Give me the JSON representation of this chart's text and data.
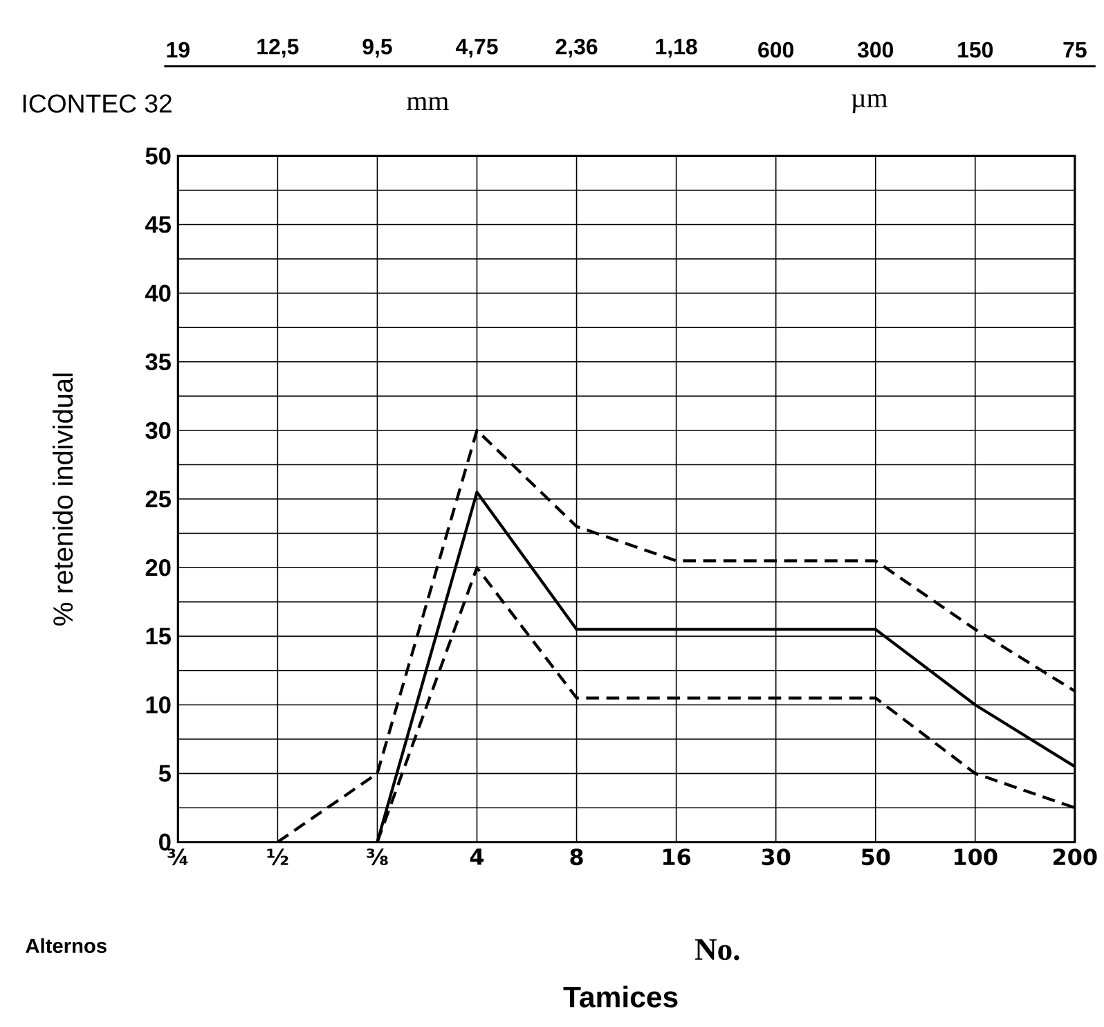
{
  "chart_data": {
    "type": "line",
    "xlabel": "Tamices",
    "ylabel": "% retenido individual",
    "categories": [
      "¾",
      "½",
      "⅜",
      "4",
      "8",
      "16",
      "30",
      "50",
      "100",
      "200"
    ],
    "series": [
      {
        "color": "#000000",
        "line_style": "dashed",
        "values": [
          null,
          0,
          5,
          30,
          23,
          20.5,
          20.5,
          20.5,
          15.5,
          11
        ]
      },
      {
        "color": "#000000",
        "line_style": "solid",
        "values": [
          null,
          null,
          0,
          25.5,
          15.5,
          15.5,
          15.5,
          15.5,
          10,
          5.5
        ]
      },
      {
        "color": "#000000",
        "line_style": "dashed",
        "values": [
          null,
          null,
          0,
          20,
          10.5,
          10.5,
          10.5,
          10.5,
          5,
          2.5
        ]
      }
    ],
    "ylim": [
      0,
      50
    ],
    "yticks": [
      0,
      {
        "value": 2.5,
        "label": null
      },
      5,
      {
        "value": 7.5,
        "label": null
      },
      10,
      {
        "value": 12.5,
        "label": null
      },
      15,
      {
        "value": 17.5,
        "label": null
      },
      20,
      {
        "value": 22.5,
        "label": null
      },
      25,
      {
        "value": 27.5,
        "label": null
      },
      30,
      {
        "value": 32.5,
        "label": null
      },
      35,
      {
        "value": 37.5,
        "label": null
      },
      40,
      {
        "value": 42.5,
        "label": null
      },
      45,
      {
        "value": 47.5,
        "label": null
      },
      50
    ],
    "annotations": [
      "19",
      "12,5",
      "9,5",
      "4,75",
      "2,36",
      "1,18",
      "600",
      "300",
      "150",
      "75",
      "ICONTEC 32",
      "mm",
      "µm",
      "Alternos",
      "No."
    ],
    "grid": true,
    "marker": "none"
  }
}
